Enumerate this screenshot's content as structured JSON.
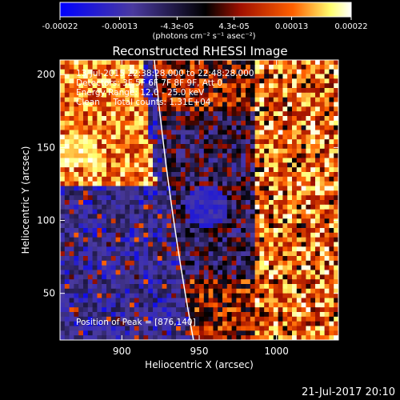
{
  "colorbar": {
    "tick_labels": [
      "-0.00022",
      "-0.00013",
      "-4.3e-05",
      "4.3e-05",
      "0.00013",
      "0.00022"
    ],
    "tick_values": [
      -0.00022,
      -0.00013,
      -4.3e-05,
      4.3e-05,
      0.00013,
      0.00022
    ],
    "range": [
      -0.00022,
      0.00022
    ],
    "unit_label": "(photons cm⁻² s⁻¹ asec⁻²)"
  },
  "chart_data": {
    "type": "heatmap",
    "title": "Reconstructed RHESSI Image",
    "xlabel": "Heliocentric X (arcsec)",
    "ylabel": "Heliocentric Y (arcsec)",
    "xlim": [
      860,
      1040
    ],
    "ylim": [
      18,
      210
    ],
    "x_ticks": [
      900,
      950,
      1000
    ],
    "y_ticks": [
      50,
      100,
      150,
      200
    ],
    "annotations": [
      "13-Jul-2015 22:38:28.000 to 22:48:28.000",
      "Detectors: 3F 5F 6F 7F 8F 9F, Att 0",
      "Energy Range: 12.0 - 25.0 keV",
      "Clean     Total counts: 1.31E+04"
    ],
    "peak_label": "Position of Peak = [876,140]",
    "peak_position": [
      876,
      140
    ]
  },
  "footer": {
    "timestamp": "21-Jul-2017 20:10"
  },
  "palette": {
    "stops": [
      "#0000ff",
      "#4a3aa0",
      "#000000",
      "#a01000",
      "#ff6000",
      "#ffff70",
      "#ffffff"
    ]
  }
}
